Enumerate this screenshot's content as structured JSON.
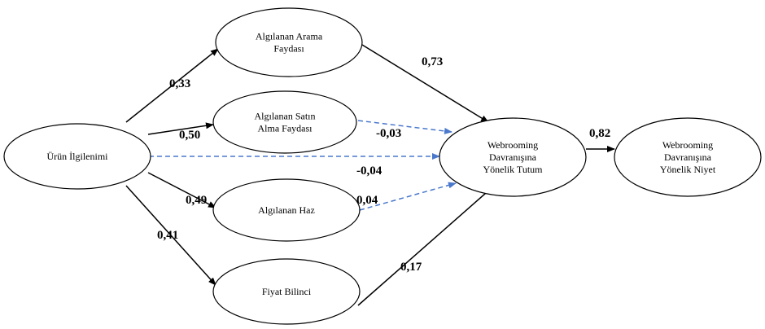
{
  "nodes": [
    {
      "label": [
        "Ürün İlgilenimi"
      ]
    },
    {
      "label": [
        "Algılanan Arama",
        "Faydası"
      ]
    },
    {
      "label": [
        "Algılanan Satın",
        "Alma Faydası"
      ]
    },
    {
      "label": [
        "Algılanan Haz"
      ]
    },
    {
      "label": [
        "Fiyat Bilinci"
      ]
    },
    {
      "label": [
        "Webrooming",
        "Davranışına",
        "Yönelik Tutum"
      ]
    },
    {
      "label": [
        "Webrooming",
        "Davranışına",
        "Yönelik Niyet"
      ]
    }
  ],
  "edges": [
    {
      "label": "0,33"
    },
    {
      "label": "0,50"
    },
    {
      "label": "-0,04"
    },
    {
      "label": "0,49"
    },
    {
      "label": "0,41"
    },
    {
      "label": "0,73"
    },
    {
      "label": "-0,03"
    },
    {
      "label": "0,04"
    },
    {
      "label": "0,17"
    },
    {
      "label": "0,82"
    }
  ]
}
